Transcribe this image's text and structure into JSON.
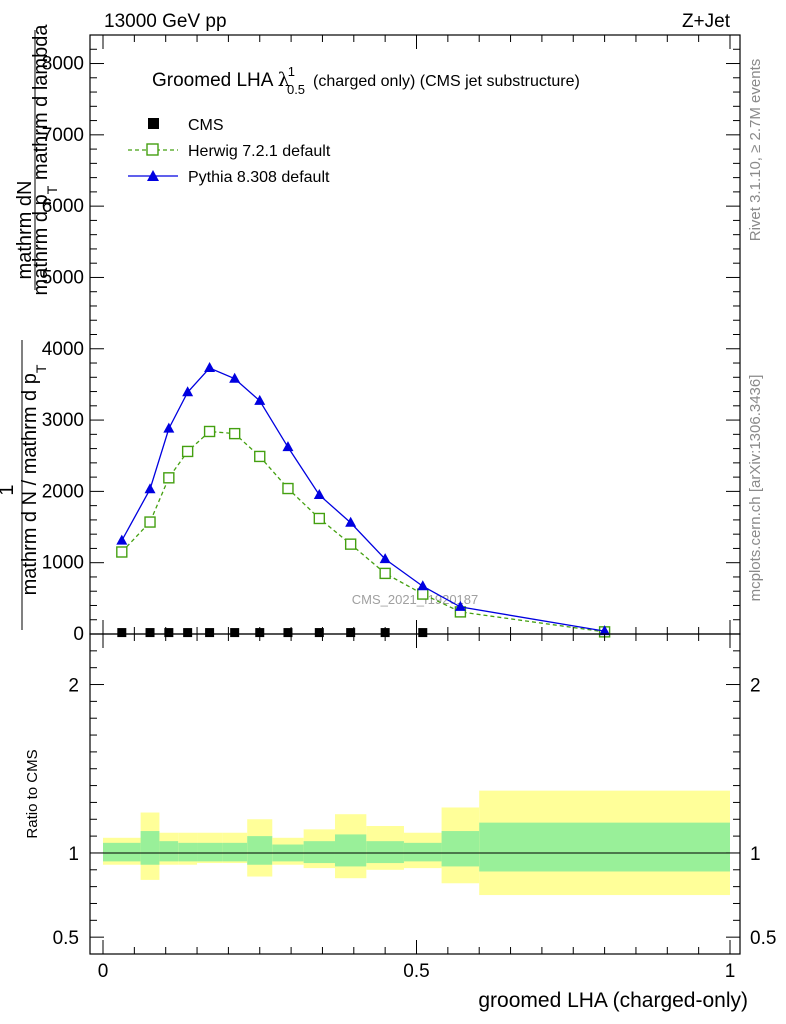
{
  "header": {
    "left": "13000 GeV pp",
    "right": "Z+Jet"
  },
  "side_labels": {
    "rivet": "Rivet 3.1.10, ≥ 2.7M events",
    "mcplots": "mcplots.cern.ch [arXiv:1306.3436]"
  },
  "chart_data": [
    {
      "type": "line",
      "panel": "main",
      "title": "Groomed LHA",
      "title_symbol": "λ",
      "title_sub": "0.5",
      "title_sup": "1",
      "title_suffix": "(charged only) (CMS jet substructure)",
      "watermark": "CMS_2021_I1920187",
      "ylabel_numerator": "mathrm dN",
      "ylabel_denominator": "mathrm d p",
      "ylabel_denominator_sub": "T",
      "ylabel_denominator_suffix": "mathrm d lambda",
      "ylabel2_prefix": "1",
      "ylabel2_denominator": "mathrm d N / mathrm d p",
      "ylabel2_denominator_sub": "T",
      "ylabel2_denominator_suffix": "mathrm d N / mathrm d p",
      "ylabel2_sub": "T",
      "xlim": [
        0,
        1
      ],
      "ylim": [
        0,
        8400
      ],
      "yticks": [
        0,
        1000,
        2000,
        3000,
        4000,
        5000,
        6000,
        7000,
        8000
      ],
      "ytick_labels": [
        "0",
        "1000",
        "2000",
        "3000",
        "4000",
        "5000",
        "6000",
        "7000",
        "8000"
      ],
      "legend_position": "top-left",
      "series": [
        {
          "name": "CMS",
          "marker": "square-filled",
          "color": "#000000",
          "x": [
            0.03,
            0.075,
            0.105,
            0.135,
            0.17,
            0.21,
            0.25,
            0.295,
            0.345,
            0.395,
            0.45,
            0.51
          ],
          "values": [
            20,
            20,
            20,
            20,
            20,
            20,
            20,
            20,
            20,
            20,
            20,
            20
          ]
        },
        {
          "name": "Herwig 7.2.1 default",
          "marker": "square-open",
          "color": "#44a010",
          "dashed": true,
          "x": [
            0.03,
            0.075,
            0.105,
            0.135,
            0.17,
            0.21,
            0.25,
            0.295,
            0.345,
            0.395,
            0.45,
            0.51,
            0.57,
            0.8
          ],
          "values": [
            1150,
            1570,
            2190,
            2560,
            2840,
            2810,
            2490,
            2040,
            1620,
            1260,
            850,
            560,
            310,
            30
          ]
        },
        {
          "name": "Pythia 8.308 default",
          "marker": "triangle-filled",
          "color": "#0000e0",
          "dashed": false,
          "x": [
            0.03,
            0.075,
            0.105,
            0.135,
            0.17,
            0.21,
            0.25,
            0.295,
            0.345,
            0.395,
            0.45,
            0.51,
            0.57,
            0.8
          ],
          "values": [
            1310,
            2030,
            2880,
            3390,
            3730,
            3580,
            3270,
            2620,
            1950,
            1560,
            1050,
            670,
            380,
            40
          ]
        }
      ]
    },
    {
      "type": "area",
      "panel": "ratio",
      "ylabel": "Ratio to CMS",
      "xlabel": "groomed LHA (charged-only)",
      "xlim": [
        0,
        1
      ],
      "ylim": [
        0.4,
        2.3
      ],
      "xticks": [
        0,
        0.5,
        1
      ],
      "xtick_labels": [
        "0",
        "0.5",
        "1"
      ],
      "yticks": [
        0.5,
        1,
        2
      ],
      "ytick_labels": [
        "0.5",
        "1",
        "2"
      ],
      "reference_line": 1,
      "bins": [
        {
          "lo": 0.0,
          "hi": 0.06,
          "inner": [
            0.95,
            1.06
          ],
          "outer": [
            0.93,
            1.09
          ]
        },
        {
          "lo": 0.06,
          "hi": 0.09,
          "inner": [
            0.93,
            1.13
          ],
          "outer": [
            0.84,
            1.24
          ]
        },
        {
          "lo": 0.09,
          "hi": 0.12,
          "inner": [
            0.95,
            1.07
          ],
          "outer": [
            0.93,
            1.12
          ]
        },
        {
          "lo": 0.12,
          "hi": 0.15,
          "inner": [
            0.95,
            1.06
          ],
          "outer": [
            0.93,
            1.12
          ]
        },
        {
          "lo": 0.15,
          "hi": 0.19,
          "inner": [
            0.95,
            1.06
          ],
          "outer": [
            0.94,
            1.12
          ]
        },
        {
          "lo": 0.19,
          "hi": 0.23,
          "inner": [
            0.95,
            1.06
          ],
          "outer": [
            0.94,
            1.12
          ]
        },
        {
          "lo": 0.23,
          "hi": 0.27,
          "inner": [
            0.93,
            1.1
          ],
          "outer": [
            0.86,
            1.2
          ]
        },
        {
          "lo": 0.27,
          "hi": 0.32,
          "inner": [
            0.95,
            1.05
          ],
          "outer": [
            0.93,
            1.09
          ]
        },
        {
          "lo": 0.32,
          "hi": 0.37,
          "inner": [
            0.94,
            1.07
          ],
          "outer": [
            0.91,
            1.14
          ]
        },
        {
          "lo": 0.37,
          "hi": 0.42,
          "inner": [
            0.92,
            1.11
          ],
          "outer": [
            0.85,
            1.23
          ]
        },
        {
          "lo": 0.42,
          "hi": 0.48,
          "inner": [
            0.94,
            1.07
          ],
          "outer": [
            0.9,
            1.16
          ]
        },
        {
          "lo": 0.48,
          "hi": 0.54,
          "inner": [
            0.95,
            1.06
          ],
          "outer": [
            0.91,
            1.12
          ]
        },
        {
          "lo": 0.54,
          "hi": 0.6,
          "inner": [
            0.92,
            1.13
          ],
          "outer": [
            0.82,
            1.27
          ]
        },
        {
          "lo": 0.6,
          "hi": 1.0,
          "inner": [
            0.89,
            1.18
          ],
          "outer": [
            0.75,
            1.37
          ]
        }
      ],
      "colors": {
        "inner": "#99f099",
        "outer": "#ffff99"
      }
    }
  ]
}
